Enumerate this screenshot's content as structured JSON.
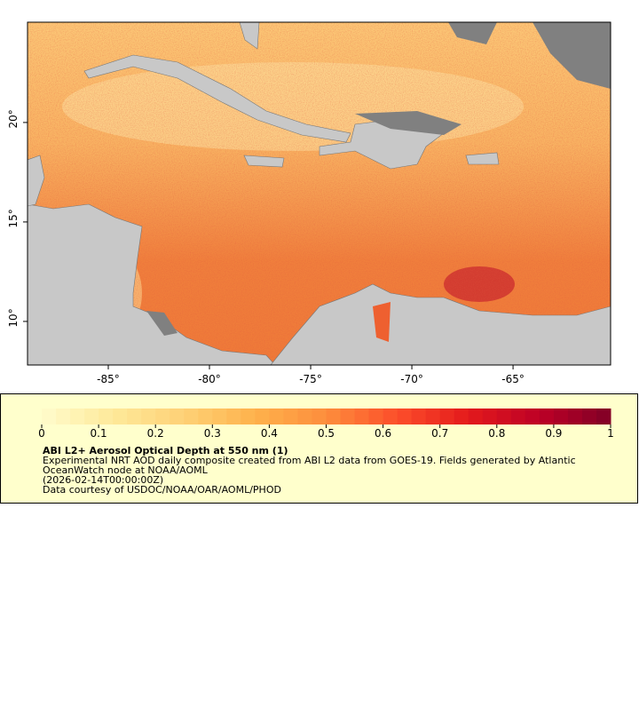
{
  "map": {
    "xlim": [
      -88.99,
      -60.18
    ],
    "ylim": [
      7.81,
      25.04
    ],
    "xticks": [
      {
        "value": -85,
        "label": "-85°"
      },
      {
        "value": -80,
        "label": "-80°"
      },
      {
        "value": -75,
        "label": "-75°"
      },
      {
        "value": -70,
        "label": "-70°"
      },
      {
        "value": -65,
        "label": "-65°"
      }
    ],
    "yticks": [
      {
        "value": 10,
        "label": "10°"
      },
      {
        "value": 15,
        "label": "15°"
      },
      {
        "value": 20,
        "label": "20°"
      }
    ]
  },
  "legend": {
    "title": "ABI L2+ Aerosol Optical Depth at 550 nm (1)",
    "lines": [
      "Experimental NRT AOD daily composite created from ABI L2 data from GOES-19. Fields generated by Atlantic",
      "OceanWatch node at NOAA/AOML",
      "(2026-02-14T00:00:00Z)",
      "Data courtesy of USDOC/NOAA/OAR/AOML/PHOD"
    ],
    "colorbar": {
      "range": [
        0,
        1
      ],
      "ticks": [
        0,
        0.1,
        0.2,
        0.3,
        0.4,
        0.5,
        0.6,
        0.7,
        0.8,
        0.9,
        1
      ],
      "colors": [
        "#fffccc",
        "#fee99a",
        "#fed176",
        "#feb24c",
        "#fd8d3c",
        "#fc4e2a",
        "#e31a1c",
        "#bd0026",
        "#800026"
      ],
      "steps": 40
    }
  }
}
